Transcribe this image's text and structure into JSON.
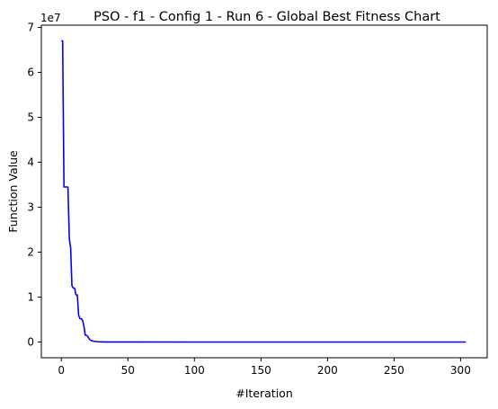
{
  "chart_data": {
    "type": "line",
    "title": "PSO - f1 - Config 1 - Run 6 - Global Best Fitness Chart",
    "xlabel": "#Iteration",
    "ylabel": "Function Value",
    "y_offset_text": "1e7",
    "y_multiplier": 10000000,
    "xlim": [
      -15,
      320
    ],
    "ylim": [
      -0.35,
      7.05
    ],
    "xticks": [
      0,
      50,
      100,
      150,
      200,
      250,
      300
    ],
    "yticks": [
      0,
      1,
      2,
      3,
      4,
      5,
      6,
      7
    ],
    "grid": false,
    "legend": "none",
    "series": [
      {
        "color": "#0000ff",
        "x": [
          0,
          1,
          2,
          3,
          4,
          5,
          6,
          7,
          8,
          9,
          10,
          11,
          12,
          13,
          14,
          15,
          16,
          17,
          18,
          19,
          20,
          21,
          22,
          23,
          24,
          25,
          26,
          28,
          30,
          35,
          40,
          50,
          100,
          150,
          200,
          250,
          300,
          304
        ],
        "y": [
          6.7,
          6.7,
          3.45,
          3.45,
          3.45,
          3.45,
          2.3,
          2.1,
          1.25,
          1.2,
          1.2,
          1.05,
          1.05,
          0.6,
          0.52,
          0.52,
          0.48,
          0.35,
          0.15,
          0.15,
          0.12,
          0.07,
          0.04,
          0.03,
          0.02,
          0.015,
          0.01,
          0.006,
          0.004,
          0.002,
          0.001,
          0.0005,
          0.0002,
          0.0001,
          0.0001,
          0.0001,
          0.0001,
          0.0001
        ]
      }
    ]
  }
}
